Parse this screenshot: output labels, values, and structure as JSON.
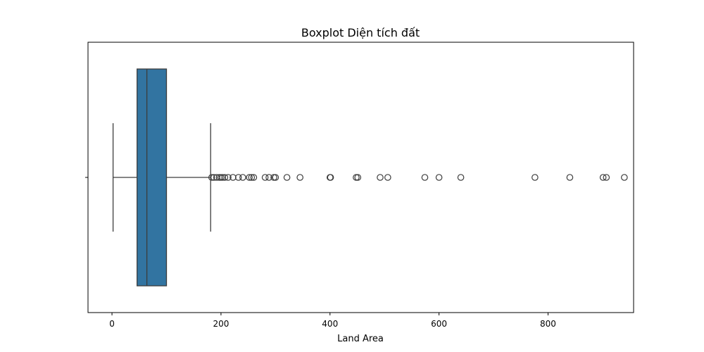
{
  "chart_data": {
    "type": "box",
    "orientation": "horizontal",
    "title": "Boxplot Diện tích đất",
    "xlabel": "Land Area",
    "ylabel": "",
    "xlim": [
      -44,
      957
    ],
    "xticks": [
      0,
      200,
      400,
      600,
      800
    ],
    "grid": false,
    "legend": "none",
    "box_color": "#3274a1",
    "series": [
      {
        "min": 2,
        "q1": 46,
        "median": 64,
        "q3": 100,
        "max": 181,
        "outliers": [
          183,
          187,
          192,
          197,
          200,
          203,
          207,
          213,
          222,
          232,
          240,
          252,
          256,
          260,
          281,
          288,
          297,
          300,
          321,
          345,
          400,
          401,
          448,
          451,
          492,
          506,
          574,
          600,
          640,
          776,
          840,
          901,
          907,
          940
        ]
      }
    ]
  }
}
